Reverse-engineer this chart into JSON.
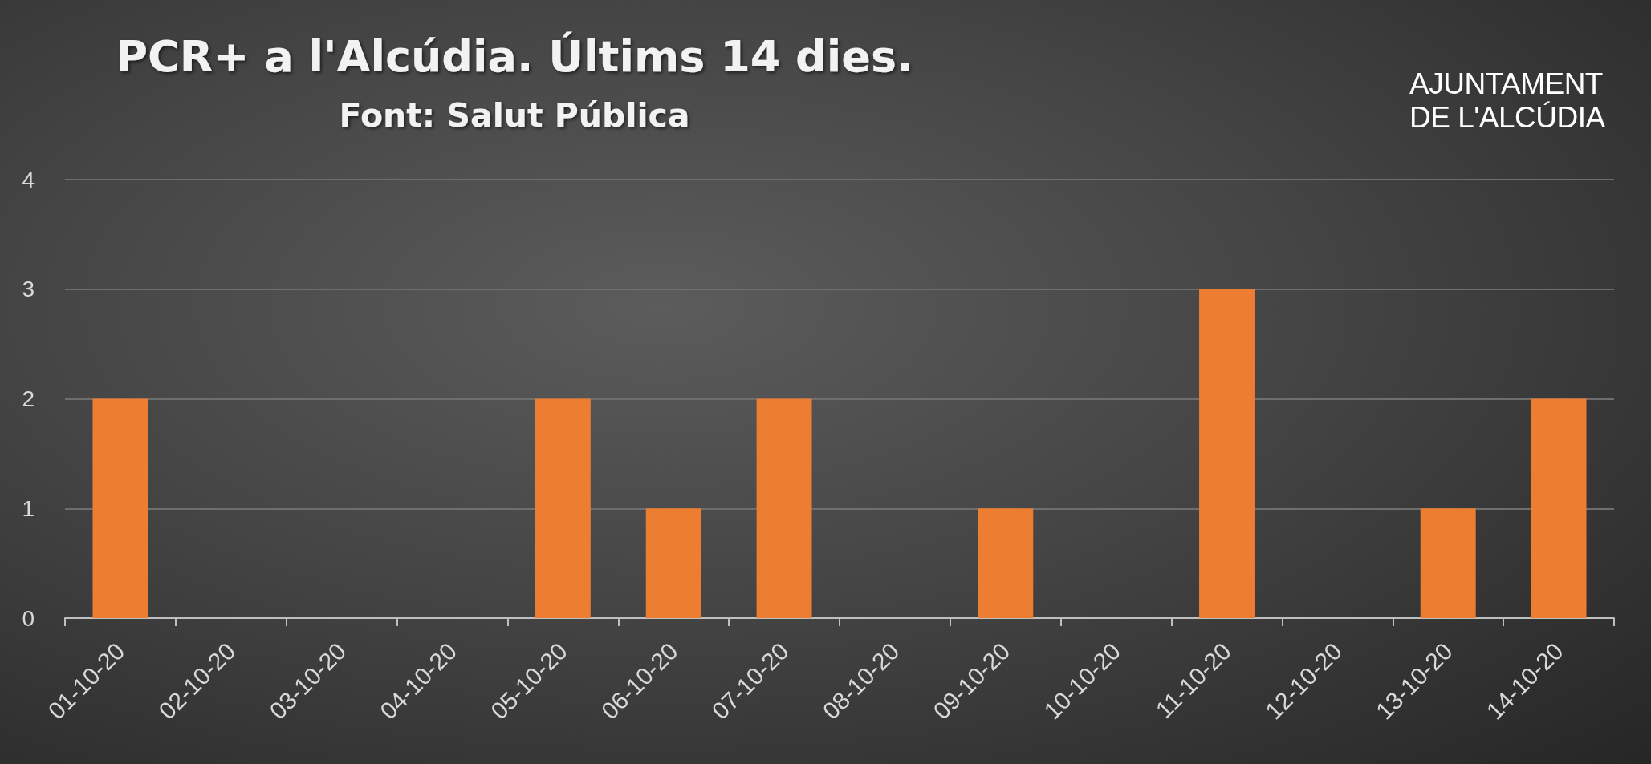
{
  "chart_data": {
    "type": "bar",
    "title": "PCR+ a l'Alcúdia. Últims 14 dies.",
    "subtitle": "Font: Salut Pública",
    "categories": [
      "01-10-20",
      "02-10-20",
      "03-10-20",
      "04-10-20",
      "05-10-20",
      "06-10-20",
      "07-10-20",
      "08-10-20",
      "09-10-20",
      "10-10-20",
      "11-10-20",
      "12-10-20",
      "13-10-20",
      "14-10-20"
    ],
    "values": [
      2,
      0,
      0,
      0,
      2,
      1,
      2,
      0,
      1,
      0,
      3,
      0,
      1,
      2
    ],
    "color": "#ed7d31",
    "ylim": [
      0,
      4
    ],
    "yticks": [
      0,
      1,
      2,
      3,
      4
    ],
    "grid": "y",
    "annotations": [
      "AJUNTAMENT DE L'ALCÚDIA"
    ]
  }
}
